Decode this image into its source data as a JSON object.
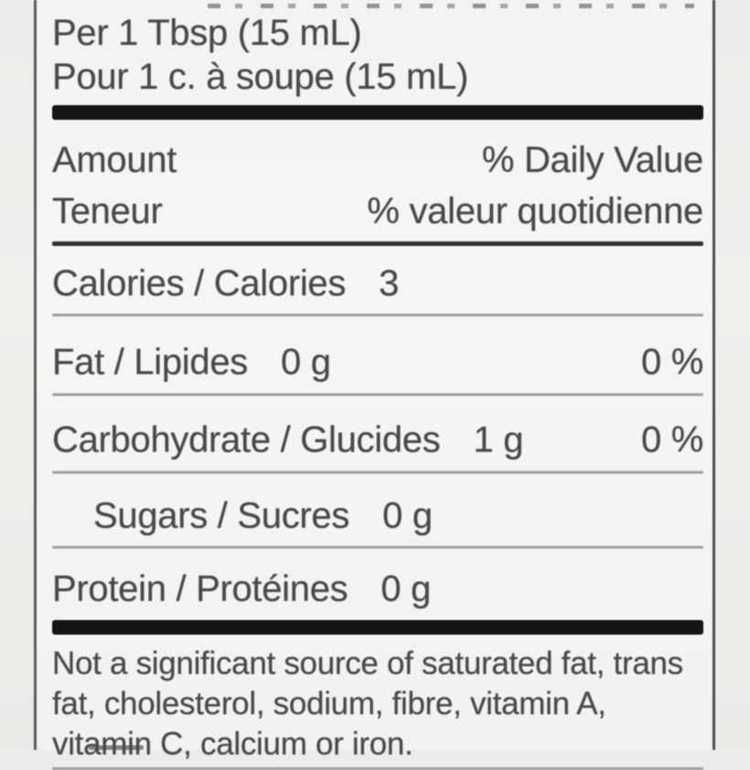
{
  "label": {
    "serving_en": "Per 1 Tbsp (15 mL)",
    "serving_fr": "Pour 1 c. à soupe (15 mL)",
    "header": {
      "amount_en": "Amount",
      "amount_fr": "Teneur",
      "dv_en": "% Daily Value",
      "dv_fr": "% valeur quotidienne"
    },
    "rows": [
      {
        "label": "Calories / Calories",
        "amount": "3",
        "dv": ""
      },
      {
        "label": "Fat / Lipides",
        "amount": "0 g",
        "dv": "0 %"
      },
      {
        "label": "Carbohydrate / Glucides",
        "amount": "1 g",
        "dv": "0 %"
      },
      {
        "label": "Sugars / Sucres",
        "amount": "0 g",
        "dv": ""
      },
      {
        "label": "Protein / Protéines",
        "amount": "0 g",
        "dv": ""
      }
    ],
    "footnote_lines": [
      "Not a significant source of saturated fat, trans",
      "fat, cholesterol, sodium, fibre, vitamin A,",
      "vitamin C, calcium or iron."
    ],
    "colors": {
      "text": "#4a4a4a",
      "bar": "#151515",
      "rule_dark": "#333331",
      "rule_light": "#a2a09d",
      "border": "#5c5c5c",
      "background": "#f4f3f1"
    }
  }
}
